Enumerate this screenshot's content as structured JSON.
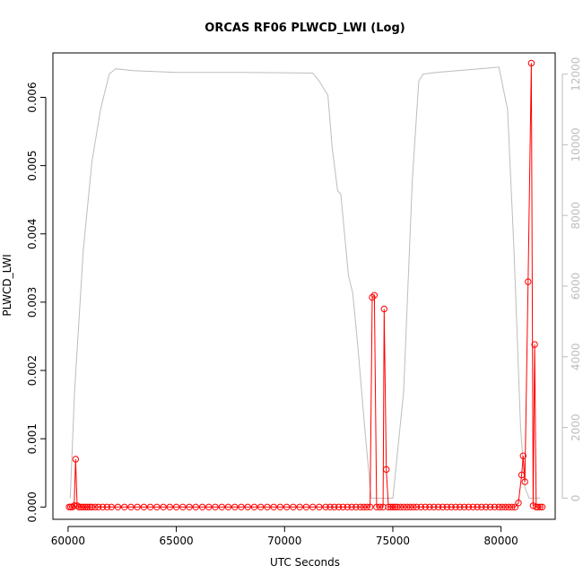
{
  "chart_data": {
    "type": "line",
    "title": "ORCAS RF06 PLWCD_LWI (Log)",
    "xlabel": "UTC Seconds",
    "ylabel": "PLWCD_LWI",
    "xlim": [
      59300,
      82500
    ],
    "ylim": [
      -0.00018,
      0.00665
    ],
    "y2lim": [
      -600,
      12600
    ],
    "x_ticks": [
      60000,
      65000,
      70000,
      75000,
      80000
    ],
    "x_tick_labels": [
      "60000",
      "65000",
      "70000",
      "75000",
      "80000"
    ],
    "y_ticks": [
      0,
      0.001,
      0.002,
      0.003,
      0.004,
      0.005,
      0.006
    ],
    "y_tick_labels": [
      "0.000",
      "0.001",
      "0.002",
      "0.003",
      "0.004",
      "0.005",
      "0.006"
    ],
    "y2_ticks": [
      0,
      2000,
      4000,
      6000,
      8000,
      10000,
      12000
    ],
    "y2_tick_labels": [
      "0",
      "2000",
      "4000",
      "6000",
      "8000",
      "10000",
      "12000"
    ],
    "colors": {
      "lwc": "#ff0000",
      "altitude": "#bdbdbd",
      "axis": "#000000"
    },
    "series": [
      {
        "axis": "left",
        "style": "line+points",
        "points": [
          [
            60050,
            0
          ],
          [
            60120,
            0
          ],
          [
            60200,
            0
          ],
          [
            60280,
            2e-05
          ],
          [
            60350,
            0.0007
          ],
          [
            60420,
            2e-05
          ],
          [
            60500,
            0
          ],
          [
            60600,
            0
          ],
          [
            60700,
            0
          ],
          [
            60800,
            0
          ],
          [
            60900,
            0
          ],
          [
            61000,
            0
          ],
          [
            61100,
            0
          ],
          [
            61250,
            0
          ],
          [
            61400,
            0
          ],
          [
            61600,
            0
          ],
          [
            61800,
            0
          ],
          [
            62000,
            0
          ],
          [
            62300,
            0
          ],
          [
            62600,
            0
          ],
          [
            62900,
            0
          ],
          [
            63200,
            0
          ],
          [
            63500,
            0
          ],
          [
            63800,
            0
          ],
          [
            64100,
            0
          ],
          [
            64400,
            0
          ],
          [
            64700,
            0
          ],
          [
            65000,
            0
          ],
          [
            65300,
            0
          ],
          [
            65600,
            0
          ],
          [
            65900,
            0
          ],
          [
            66200,
            0
          ],
          [
            66500,
            0
          ],
          [
            66800,
            0
          ],
          [
            67100,
            0
          ],
          [
            67400,
            0
          ],
          [
            67700,
            0
          ],
          [
            68000,
            0
          ],
          [
            68300,
            0
          ],
          [
            68600,
            0
          ],
          [
            68900,
            0
          ],
          [
            69200,
            0
          ],
          [
            69500,
            0
          ],
          [
            69800,
            0
          ],
          [
            70100,
            0
          ],
          [
            70400,
            0
          ],
          [
            70700,
            0
          ],
          [
            71000,
            0
          ],
          [
            71300,
            0
          ],
          [
            71600,
            0
          ],
          [
            71900,
            0
          ],
          [
            72100,
            0
          ],
          [
            72300,
            0
          ],
          [
            72500,
            0
          ],
          [
            72700,
            0
          ],
          [
            72900,
            0
          ],
          [
            73100,
            0
          ],
          [
            73300,
            0
          ],
          [
            73500,
            0
          ],
          [
            73650,
            0
          ],
          [
            73800,
            0
          ],
          [
            73950,
            0
          ],
          [
            74050,
            0.00307
          ],
          [
            74150,
            0.0031
          ],
          [
            74250,
            0
          ],
          [
            74400,
            0
          ],
          [
            74550,
            0
          ],
          [
            74600,
            0.0029
          ],
          [
            74700,
            0.00055
          ],
          [
            74800,
            0
          ],
          [
            74900,
            0
          ],
          [
            75000,
            0
          ],
          [
            75100,
            0
          ],
          [
            75200,
            0
          ],
          [
            75350,
            0
          ],
          [
            75500,
            0
          ],
          [
            75650,
            0
          ],
          [
            75800,
            0
          ],
          [
            75950,
            0
          ],
          [
            76100,
            0
          ],
          [
            76300,
            0
          ],
          [
            76500,
            0
          ],
          [
            76700,
            0
          ],
          [
            76900,
            0
          ],
          [
            77100,
            0
          ],
          [
            77300,
            0
          ],
          [
            77500,
            0
          ],
          [
            77700,
            0
          ],
          [
            77900,
            0
          ],
          [
            78100,
            0
          ],
          [
            78300,
            0
          ],
          [
            78500,
            0
          ],
          [
            78700,
            0
          ],
          [
            78900,
            0
          ],
          [
            79100,
            0
          ],
          [
            79300,
            0
          ],
          [
            79500,
            0
          ],
          [
            79700,
            0
          ],
          [
            79900,
            0
          ],
          [
            80050,
            0
          ],
          [
            80200,
            0
          ],
          [
            80350,
            0
          ],
          [
            80500,
            0
          ],
          [
            80650,
            0
          ],
          [
            80800,
            6e-05
          ],
          [
            80950,
            0.00047
          ],
          [
            81020,
            0.00075
          ],
          [
            81100,
            0.00037
          ],
          [
            81250,
            0.0033
          ],
          [
            81400,
            0.0065
          ],
          [
            81480,
            2e-05
          ],
          [
            81550,
            0.00238
          ],
          [
            81620,
            0
          ],
          [
            81700,
            0
          ],
          [
            81800,
            0
          ],
          [
            81900,
            0
          ]
        ]
      },
      {
        "axis": "right",
        "style": "line",
        "points": [
          [
            60100,
            0
          ],
          [
            60300,
            3000
          ],
          [
            60700,
            7000
          ],
          [
            61100,
            9500
          ],
          [
            61500,
            11000
          ],
          [
            61900,
            12000
          ],
          [
            62200,
            12150
          ],
          [
            63000,
            12100
          ],
          [
            65000,
            12050
          ],
          [
            68000,
            12050
          ],
          [
            70000,
            12040
          ],
          [
            71300,
            12030
          ],
          [
            71600,
            11800
          ],
          [
            72000,
            11400
          ],
          [
            72200,
            9900
          ],
          [
            72450,
            8700
          ],
          [
            72600,
            8600
          ],
          [
            72750,
            7600
          ],
          [
            72950,
            6300
          ],
          [
            73150,
            5800
          ],
          [
            73400,
            4200
          ],
          [
            73700,
            2000
          ],
          [
            74000,
            0
          ],
          [
            74200,
            0
          ],
          [
            75000,
            0
          ],
          [
            75500,
            3000
          ],
          [
            75900,
            9000
          ],
          [
            76200,
            11800
          ],
          [
            76400,
            12000
          ],
          [
            77000,
            12050
          ],
          [
            78000,
            12100
          ],
          [
            79000,
            12150
          ],
          [
            79900,
            12200
          ],
          [
            80300,
            11000
          ],
          [
            80600,
            7000
          ],
          [
            80900,
            2000
          ],
          [
            81100,
            300
          ],
          [
            81300,
            0
          ],
          [
            81800,
            0
          ]
        ]
      }
    ]
  }
}
